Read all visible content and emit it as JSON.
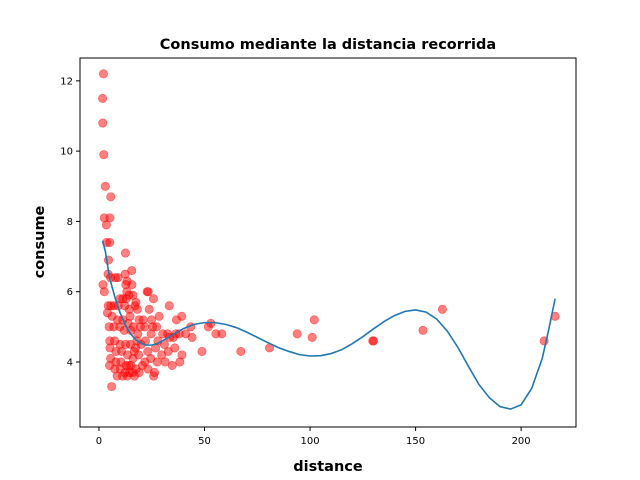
{
  "chart_data": {
    "type": "scatter",
    "title": "Consumo mediante la distancia recorrida",
    "xlabel": "distance",
    "ylabel": "consume",
    "xlim": [
      -9,
      226
    ],
    "ylim": [
      2.15,
      12.65
    ],
    "xticks": [
      0,
      50,
      100,
      150,
      200
    ],
    "yticks": [
      4,
      6,
      8,
      10,
      12
    ],
    "grid": false,
    "scatter_color": "#ff0000",
    "line_color": "#1f77b4",
    "points": [
      [
        2.1,
        12.2
      ],
      [
        1.7,
        11.5
      ],
      [
        1.8,
        10.8
      ],
      [
        2.3,
        9.9
      ],
      [
        3.0,
        9.0
      ],
      [
        5.6,
        8.7
      ],
      [
        2.5,
        8.1
      ],
      [
        5.2,
        8.1
      ],
      [
        3.5,
        7.9
      ],
      [
        3.6,
        7.4
      ],
      [
        5.1,
        7.4
      ],
      [
        12.5,
        7.1
      ],
      [
        4.5,
        6.9
      ],
      [
        15.5,
        6.6
      ],
      [
        4.3,
        6.5
      ],
      [
        5.5,
        6.4
      ],
      [
        7.8,
        6.4
      ],
      [
        9.0,
        6.4
      ],
      [
        12.4,
        6.5
      ],
      [
        13.3,
        6.3
      ],
      [
        1.9,
        6.2
      ],
      [
        2.5,
        6.0
      ],
      [
        12.7,
        6.2
      ],
      [
        13.2,
        6.0
      ],
      [
        12.9,
        5.8
      ],
      [
        14.2,
        5.9
      ],
      [
        15.6,
        6.2
      ],
      [
        16.1,
        5.9
      ],
      [
        10.0,
        5.8
      ],
      [
        11.3,
        5.8
      ],
      [
        12.2,
        5.6
      ],
      [
        17.5,
        5.7
      ],
      [
        18.2,
        5.5
      ],
      [
        22.8,
        6.0
      ],
      [
        23.3,
        6.0
      ],
      [
        25.8,
        5.8
      ],
      [
        4.4,
        5.6
      ],
      [
        5.6,
        5.6
      ],
      [
        7.1,
        5.6
      ],
      [
        9.1,
        5.6
      ],
      [
        14.3,
        5.5
      ],
      [
        20.9,
        5.2
      ],
      [
        23.8,
        5.5
      ],
      [
        24.9,
        5.2
      ],
      [
        28.5,
        5.3
      ],
      [
        33.3,
        5.6
      ],
      [
        36.7,
        5.2
      ],
      [
        39.2,
        5.3
      ],
      [
        4.0,
        5.4
      ],
      [
        6.2,
        5.3
      ],
      [
        8.8,
        5.2
      ],
      [
        11.3,
        5.2
      ],
      [
        13.8,
        5.1
      ],
      [
        16.3,
        5.0
      ],
      [
        19.0,
        5.2
      ],
      [
        21.7,
        5.0
      ],
      [
        25.4,
        5.0
      ],
      [
        27.3,
        5.0
      ],
      [
        30.2,
        4.8
      ],
      [
        32.5,
        4.8
      ],
      [
        35.2,
        4.7
      ],
      [
        38.0,
        4.8
      ],
      [
        43.5,
        5.0
      ],
      [
        51.8,
        5.0
      ],
      [
        53.0,
        5.1
      ],
      [
        55.4,
        4.8
      ],
      [
        58.2,
        4.8
      ],
      [
        4.8,
        5.0
      ],
      [
        7.0,
        5.0
      ],
      [
        9.9,
        5.0
      ],
      [
        12.0,
        4.9
      ],
      [
        15.1,
        4.9
      ],
      [
        18.4,
        4.8
      ],
      [
        22.0,
        4.6
      ],
      [
        24.7,
        4.8
      ],
      [
        27.9,
        4.6
      ],
      [
        31.0,
        4.5
      ],
      [
        33.4,
        4.7
      ],
      [
        36.4,
        4.8
      ],
      [
        41.1,
        4.8
      ],
      [
        44.1,
        4.7
      ],
      [
        48.8,
        4.3
      ],
      [
        5.1,
        4.6
      ],
      [
        7.4,
        4.6
      ],
      [
        10.0,
        4.5
      ],
      [
        12.6,
        4.5
      ],
      [
        14.9,
        4.5
      ],
      [
        17.3,
        4.4
      ],
      [
        20.0,
        4.5
      ],
      [
        23.1,
        4.3
      ],
      [
        26.8,
        4.4
      ],
      [
        29.7,
        4.2
      ],
      [
        32.8,
        4.3
      ],
      [
        35.9,
        4.4
      ],
      [
        39.3,
        4.2
      ],
      [
        5.2,
        4.4
      ],
      [
        8.1,
        4.3
      ],
      [
        10.7,
        4.3
      ],
      [
        13.5,
        4.2
      ],
      [
        16.1,
        4.1
      ],
      [
        18.8,
        4.2
      ],
      [
        21.7,
        4.0
      ],
      [
        24.5,
        4.1
      ],
      [
        27.6,
        4.0
      ],
      [
        31.3,
        4.0
      ],
      [
        34.7,
        3.9
      ],
      [
        38.3,
        4.0
      ],
      [
        5.5,
        4.1
      ],
      [
        8.0,
        4.0
      ],
      [
        10.4,
        4.0
      ],
      [
        12.8,
        3.9
      ],
      [
        15.1,
        3.9
      ],
      [
        17.6,
        3.8
      ],
      [
        20.6,
        3.9
      ],
      [
        23.2,
        3.8
      ],
      [
        26.3,
        3.7
      ],
      [
        5.0,
        3.9
      ],
      [
        7.5,
        3.8
      ],
      [
        10.1,
        3.8
      ],
      [
        12.3,
        3.7
      ],
      [
        14.5,
        3.7
      ],
      [
        16.8,
        3.6
      ],
      [
        19.0,
        3.7
      ],
      [
        25.9,
        3.6
      ],
      [
        8.6,
        3.6
      ],
      [
        11.2,
        3.6
      ],
      [
        13.4,
        3.6
      ],
      [
        15.9,
        3.7
      ],
      [
        6.0,
        3.3
      ],
      [
        14.1,
        3.9
      ],
      [
        16.7,
        4.3
      ],
      [
        18.0,
        4.6
      ],
      [
        19.6,
        5.0
      ],
      [
        14.7,
        5.3
      ],
      [
        17.1,
        5.6
      ],
      [
        67.2,
        4.3
      ],
      [
        80.8,
        4.4
      ],
      [
        93.9,
        4.8
      ],
      [
        101.0,
        4.7
      ],
      [
        102.0,
        5.2
      ],
      [
        129.7,
        4.6
      ],
      [
        130.1,
        4.6
      ],
      [
        153.5,
        4.9
      ],
      [
        162.7,
        5.5
      ],
      [
        210.9,
        4.6
      ],
      [
        216.1,
        5.3
      ]
    ],
    "fit_curve": [
      [
        1.7,
        7.45
      ],
      [
        3.0,
        7.15
      ],
      [
        5.0,
        6.4
      ],
      [
        7.5,
        5.85
      ],
      [
        10.0,
        5.4
      ],
      [
        12.5,
        5.05
      ],
      [
        15.0,
        4.8
      ],
      [
        17.5,
        4.63
      ],
      [
        20.0,
        4.53
      ],
      [
        22.5,
        4.48
      ],
      [
        25.0,
        4.48
      ],
      [
        27.5,
        4.52
      ],
      [
        30.0,
        4.6
      ],
      [
        35.0,
        4.78
      ],
      [
        40.0,
        4.95
      ],
      [
        45.0,
        5.07
      ],
      [
        50.0,
        5.12
      ],
      [
        55.0,
        5.12
      ],
      [
        60.0,
        5.07
      ],
      [
        65.0,
        4.98
      ],
      [
        70.0,
        4.85
      ],
      [
        75.0,
        4.7
      ],
      [
        80.0,
        4.55
      ],
      [
        85.0,
        4.41
      ],
      [
        90.0,
        4.3
      ],
      [
        95.0,
        4.21
      ],
      [
        100.0,
        4.17
      ],
      [
        105.0,
        4.18
      ],
      [
        110.0,
        4.24
      ],
      [
        115.0,
        4.35
      ],
      [
        120.0,
        4.52
      ],
      [
        125.0,
        4.72
      ],
      [
        130.0,
        4.94
      ],
      [
        135.0,
        5.15
      ],
      [
        140.0,
        5.32
      ],
      [
        145.0,
        5.44
      ],
      [
        150.0,
        5.48
      ],
      [
        155.0,
        5.42
      ],
      [
        160.0,
        5.22
      ],
      [
        165.0,
        4.88
      ],
      [
        170.0,
        4.42
      ],
      [
        175.0,
        3.88
      ],
      [
        180.0,
        3.36
      ],
      [
        185.0,
        2.98
      ],
      [
        190.0,
        2.73
      ],
      [
        195.0,
        2.66
      ],
      [
        200.0,
        2.78
      ],
      [
        205.0,
        3.25
      ],
      [
        210.0,
        4.1
      ],
      [
        213.0,
        4.9
      ],
      [
        216.1,
        5.8
      ]
    ]
  }
}
